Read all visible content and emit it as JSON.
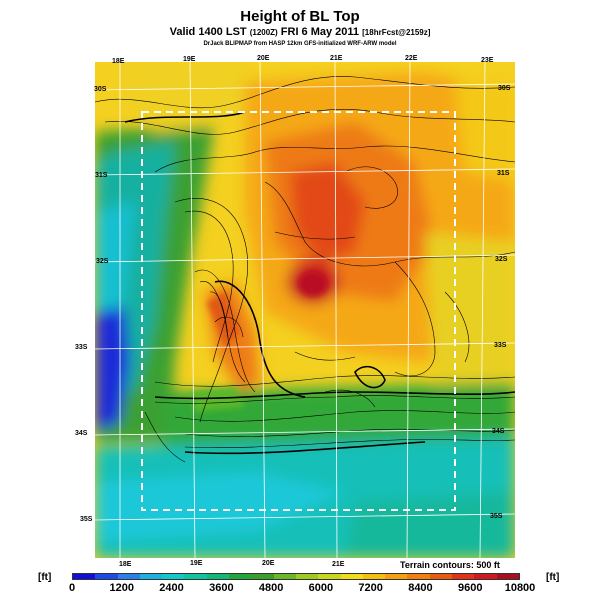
{
  "title": "Height of BL Top",
  "subtitle_main": "Valid 1400 LST",
  "subtitle_utc": "(1200Z)",
  "subtitle_date": "FRI 6 May 2011",
  "subtitle_fcst": "[18hrFcst@2159z]",
  "credit": "DrJack BLIPMAP from HASP 12km GFS-initialized WRF-ARW model",
  "terrain_note": "Terrain contours: 500 ft",
  "unit_label": "[ft]",
  "lon_labels_top": [
    "18E",
    "19E",
    "20E",
    "21E",
    "22E",
    "23E"
  ],
  "lon_labels_bottom": [
    "18E",
    "19E",
    "20E",
    "21E"
  ],
  "lat_labels_left": [
    "30S",
    "31S",
    "32S",
    "33S",
    "34S",
    "35S"
  ],
  "lat_labels_right": [
    "30S",
    "31S",
    "32S",
    "33S",
    "34S",
    "35S"
  ],
  "colorbar_ticks": [
    "0",
    "1200",
    "2400",
    "3600",
    "4800",
    "6000",
    "7200",
    "8400",
    "9600",
    "10800"
  ],
  "colorbar_colors": [
    "#1010d8",
    "#1e4be6",
    "#2a7fe8",
    "#1fb0e0",
    "#12c8c8",
    "#10c4a0",
    "#12b878",
    "#20a83c",
    "#3aa02c",
    "#6ab82a",
    "#9ccc24",
    "#c8d820",
    "#f0dc18",
    "#f4c010",
    "#f4a010",
    "#f08010",
    "#e85c10",
    "#e03418",
    "#cc1c20",
    "#a81020"
  ],
  "colors": {
    "deep_blue": "#1a1ad8",
    "cyan": "#20c8c8",
    "green": "#2ca838",
    "yellow": "#f4d020",
    "orange": "#f08818",
    "red": "#d81c24",
    "boundary": "#ffffff"
  }
}
